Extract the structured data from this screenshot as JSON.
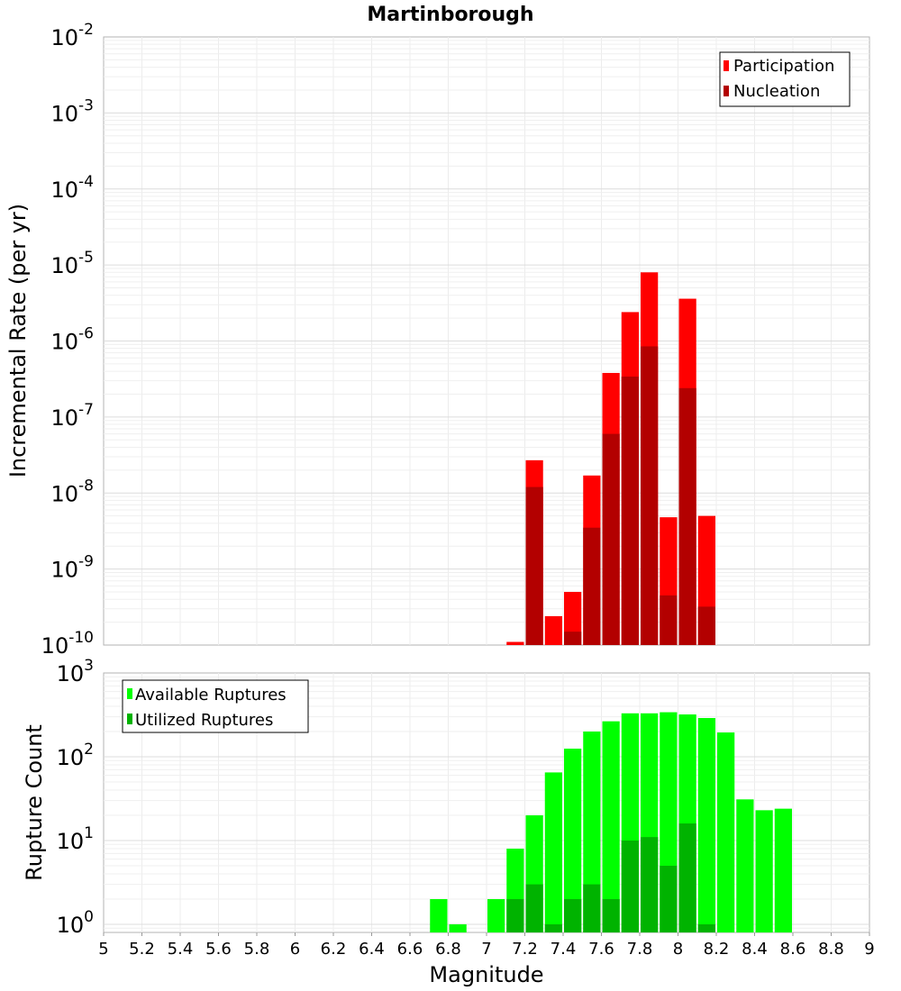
{
  "colors": {
    "participation": "#ff0000",
    "nucleation": "#b30000",
    "available": "#00ff00",
    "utilized": "#00b300"
  },
  "chart_data": [
    {
      "type": "bar",
      "title": "Martinborough",
      "xlabel": "",
      "ylabel": "Incremental Rate (per yr)",
      "yscale": "log",
      "xlim": [
        5,
        9
      ],
      "ylim": [
        1e-10,
        0.01
      ],
      "y_tick_labels": [
        {
          "base": "10",
          "exp": "-10"
        },
        {
          "base": "10",
          "exp": "-9"
        },
        {
          "base": "10",
          "exp": "-8"
        },
        {
          "base": "10",
          "exp": "-7"
        },
        {
          "base": "10",
          "exp": "-6"
        },
        {
          "base": "10",
          "exp": "-5"
        },
        {
          "base": "10",
          "exp": "-4"
        },
        {
          "base": "10",
          "exp": "-3"
        },
        {
          "base": "10",
          "exp": "-2"
        }
      ],
      "legend_position": "top-right",
      "grid": true,
      "series": [
        {
          "name": "Participation",
          "x": [
            7.15,
            7.25,
            7.35,
            7.45,
            7.55,
            7.65,
            7.75,
            7.85,
            7.95,
            8.05,
            8.15
          ],
          "values": [
            1.1e-10,
            2.7e-08,
            2.4e-10,
            5e-10,
            1.7e-08,
            3.8e-07,
            2.4e-06,
            8e-06,
            4.8e-09,
            3.6e-06,
            5e-09
          ]
        },
        {
          "name": "Nucleation",
          "x": [
            7.25,
            7.45,
            7.55,
            7.65,
            7.75,
            7.85,
            7.95,
            8.05,
            8.15
          ],
          "values": [
            1.2e-08,
            1.5e-10,
            3.5e-09,
            6e-08,
            3.4e-07,
            8.5e-07,
            4.5e-10,
            2.4e-07,
            3.2e-10
          ]
        }
      ]
    },
    {
      "type": "bar",
      "title": "",
      "xlabel": "Magnitude",
      "ylabel": "Rupture Count",
      "yscale": "log",
      "xlim": [
        5,
        9
      ],
      "ylim": [
        0.8,
        1000
      ],
      "x_tick_labels": [
        "5",
        "5.2",
        "5.4",
        "5.6",
        "5.8",
        "6",
        "6.2",
        "6.4",
        "6.6",
        "6.8",
        "7",
        "7.2",
        "7.4",
        "7.6",
        "7.8",
        "8",
        "8.2",
        "8.4",
        "8.6",
        "8.8",
        "9"
      ],
      "y_tick_labels": [
        {
          "base": "10",
          "exp": "0"
        },
        {
          "base": "10",
          "exp": "1"
        },
        {
          "base": "10",
          "exp": "2"
        },
        {
          "base": "10",
          "exp": "3"
        }
      ],
      "legend_position": "top-left",
      "grid": true,
      "series": [
        {
          "name": "Available Ruptures",
          "x": [
            6.75,
            6.85,
            7.05,
            7.15,
            7.25,
            7.35,
            7.45,
            7.55,
            7.65,
            7.75,
            7.85,
            7.95,
            8.05,
            8.15,
            8.25,
            8.35,
            8.45,
            8.55
          ],
          "values": [
            2,
            1,
            2,
            8,
            20,
            65,
            125,
            200,
            265,
            330,
            330,
            340,
            320,
            290,
            195,
            31,
            23,
            24
          ]
        },
        {
          "name": "Utilized Ruptures",
          "x": [
            7.15,
            7.25,
            7.35,
            7.45,
            7.55,
            7.65,
            7.75,
            7.85,
            7.95,
            8.05,
            8.15
          ],
          "values": [
            2,
            3,
            1,
            2,
            3,
            2,
            10,
            11,
            5,
            16,
            1
          ]
        }
      ]
    }
  ]
}
